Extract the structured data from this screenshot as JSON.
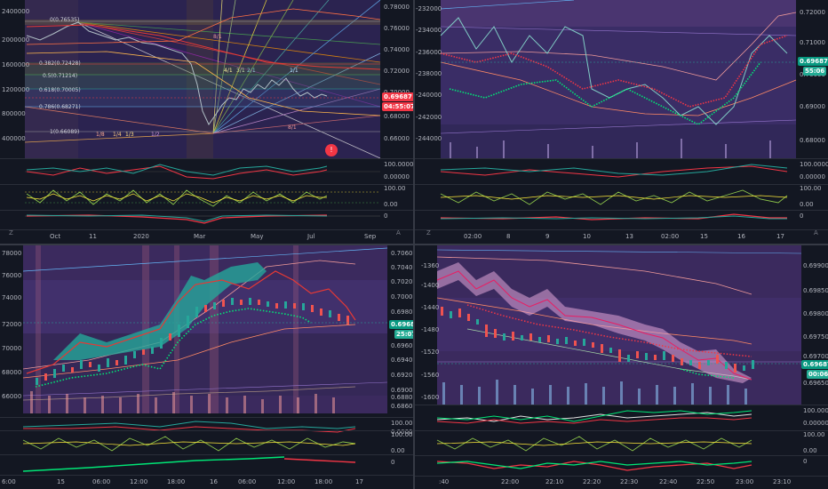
{
  "q1": {
    "left_axis": [
      "2400000",
      "2000000",
      "1600000",
      "1200000",
      "800000",
      "400000"
    ],
    "right_axis": [
      "0.78000",
      "0.76000",
      "0.74000",
      "0.72000",
      "0.70000",
      "0.68000",
      "0.66000"
    ],
    "price_tag": "0.69687",
    "time_tag": "04:55:07",
    "fib_labels": [
      "0(0.76535)",
      "0.382(0.72428)",
      "0.5(0.71214)",
      "0.618(0.70005)",
      "0.786(0.68271)",
      "1(0.66089)"
    ],
    "fan_labels": [
      "8/1",
      "4/1",
      "3/1",
      "2/1",
      "1/1",
      "1/2",
      "1/3",
      "1/4",
      "1/8",
      "8/1"
    ],
    "osc1_axis": [
      "100.00000",
      "0.00000"
    ],
    "osc2_axis": [
      "100.00",
      "0.00"
    ],
    "osc3_axis": [
      "0"
    ],
    "x_labels": [
      "Oct",
      "11",
      "2020",
      "Mar",
      "May",
      "Jul",
      "Sep"
    ],
    "corner_left": "Z",
    "corner_right": "A"
  },
  "q2": {
    "left_axis": [
      "-232000",
      "-234000",
      "-236000",
      "-238000",
      "-240000",
      "-242000",
      "-244000"
    ],
    "right_axis": [
      "0.72000",
      "0.71000",
      "0.70000",
      "0.69000",
      "0.68000"
    ],
    "price_tag": "0.69687",
    "time_tag": "55:06",
    "osc1_axis": [
      "100.00000",
      "0.00000"
    ],
    "osc2_axis": [
      "100.00",
      "0.00"
    ],
    "osc3_axis": [
      "0"
    ],
    "x_labels": [
      "02:00",
      "8",
      "9",
      "10",
      "13",
      "02:00",
      "15",
      "16",
      "17"
    ],
    "corner_left": "Z",
    "corner_right": "A"
  },
  "q3": {
    "left_axis": [
      "78000",
      "76000",
      "74000",
      "72000",
      "70000",
      "68000",
      "66000"
    ],
    "right_axis": [
      "0.70600",
      "0.70400",
      "0.70200",
      "0.70000",
      "0.69800",
      "0.69600",
      "0.69400",
      "0.69200",
      "0.69000",
      "0.68800",
      "0.68600"
    ],
    "price_tag": "0.69687",
    "time_tag": "25:07",
    "osc1_axis": [
      "100.00000",
      "0.00000"
    ],
    "osc2_axis": [
      "100.00",
      "0.00"
    ],
    "osc3_axis": [
      "0"
    ],
    "x_labels": [
      "6:00",
      "15",
      "06:00",
      "12:00",
      "18:00",
      "16",
      "06:00",
      "12:00",
      "18:00",
      "17"
    ],
    "corner_left": "Z",
    "corner_right": "A"
  },
  "q4": {
    "left_axis": [
      "-1360",
      "-1400",
      "-1440",
      "-1480",
      "-1520",
      "-1560",
      "-1600"
    ],
    "right_axis": [
      "0.69900",
      "0.69850",
      "0.69800",
      "0.69750",
      "0.69700",
      "0.69650"
    ],
    "price_tag": "0.69687",
    "time_tag": "00:06",
    "osc1_axis": [
      "100.00000",
      "0.00000"
    ],
    "osc2_axis": [
      "100.00",
      "0.00"
    ],
    "osc3_axis": [
      "0"
    ],
    "x_labels": [
      ":40",
      "22:00",
      "22:10",
      "22:20",
      "22:30",
      "22:40",
      "22:50",
      "23:00",
      "23:10"
    ],
    "corner_left": "Z",
    "corner_right": "A"
  },
  "colors": {
    "background": "#131722",
    "bull": "#26a69a",
    "bear": "#ef5350",
    "purple_bg": "#3b2a5e",
    "price_tag": "#f23645",
    "time_tag_green": "#089981"
  }
}
